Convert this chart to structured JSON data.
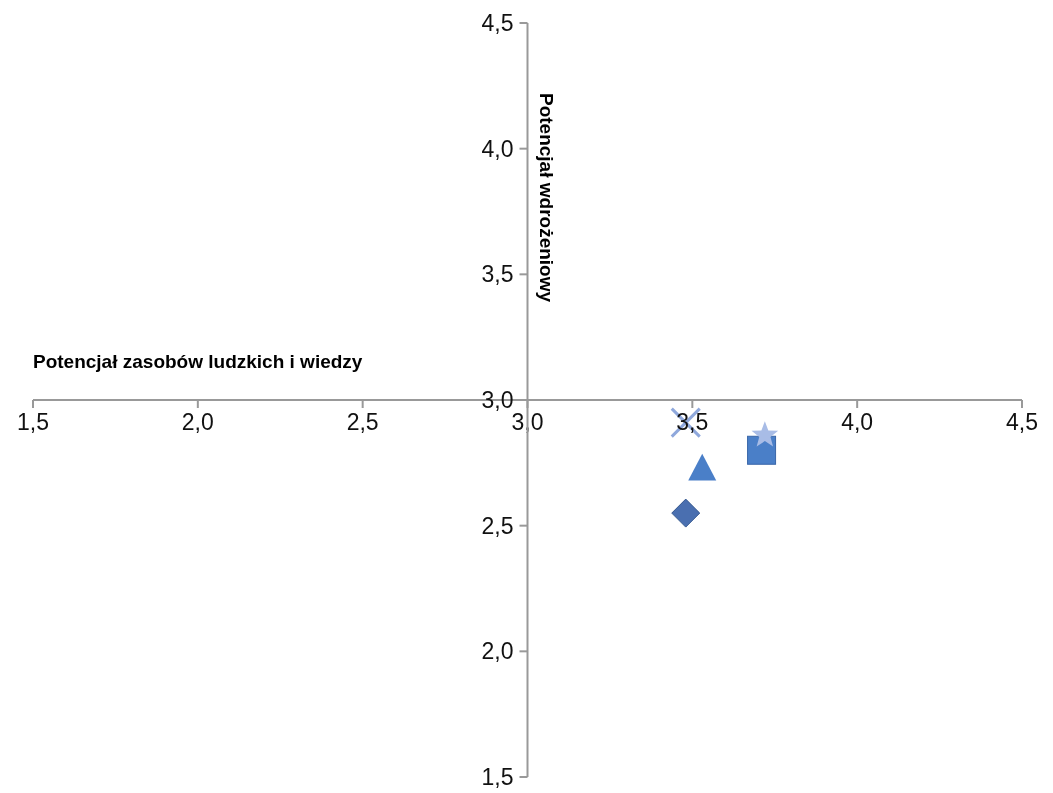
{
  "chart_data": {
    "type": "scatter",
    "xlabel": "Potencjał zasobów ludzkich i wiedzy",
    "ylabel": "Potencjał wdrożeniowy",
    "xlim": [
      1.5,
      4.5
    ],
    "ylim": [
      1.5,
      4.5
    ],
    "xticks": [
      {
        "value": 1.5,
        "label": "1,5"
      },
      {
        "value": 2.0,
        "label": "2,0"
      },
      {
        "value": 2.5,
        "label": "2,5"
      },
      {
        "value": 3.0,
        "label": "3,0"
      },
      {
        "value": 3.5,
        "label": "3,5"
      },
      {
        "value": 4.0,
        "label": "4,0"
      },
      {
        "value": 4.5,
        "label": "4,5"
      }
    ],
    "yticks": [
      {
        "value": 1.5,
        "label": "1,5"
      },
      {
        "value": 2.0,
        "label": "2,0"
      },
      {
        "value": 2.5,
        "label": "2,5"
      },
      {
        "value": 3.0,
        "label": "3,0"
      },
      {
        "value": 3.5,
        "label": "3,5"
      },
      {
        "value": 4.0,
        "label": "4,0"
      },
      {
        "value": 4.5,
        "label": "4,5"
      }
    ],
    "grid": false,
    "series": [
      {
        "color": "#4a6fb0",
        "marker": "diamond",
        "x": [
          3.48
        ],
        "values": [
          2.55
        ]
      },
      {
        "color": "#4a7fc8",
        "marker": "square",
        "x": [
          3.71
        ],
        "values": [
          2.8
        ]
      },
      {
        "color": "#4a7fc8",
        "marker": "triangle",
        "x": [
          3.53
        ],
        "values": [
          2.73
        ]
      },
      {
        "color": "#8fa8dc",
        "marker": "cross",
        "x": [
          3.48
        ],
        "values": [
          2.91
        ]
      },
      {
        "color": "#a8bce6",
        "marker": "star",
        "x": [
          3.72
        ],
        "values": [
          2.86
        ]
      }
    ]
  }
}
